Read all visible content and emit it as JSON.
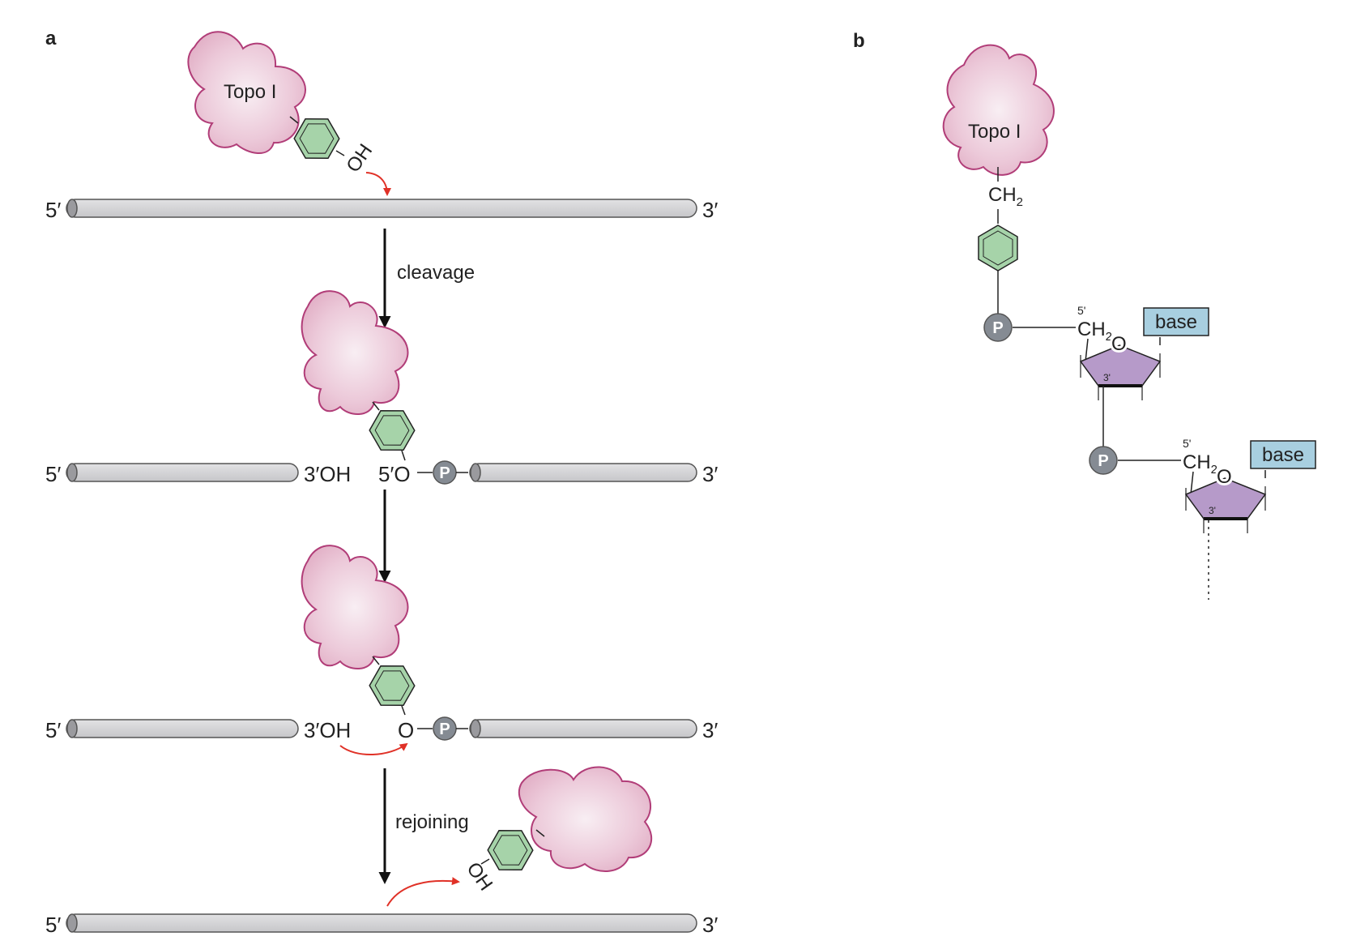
{
  "panels": {
    "a": "a",
    "b": "b"
  },
  "enzyme_label": "Topo I",
  "strand_ends": {
    "five": "5′",
    "three": "3′"
  },
  "steps": {
    "cleavage": "cleavage",
    "rejoining": "rejoining"
  },
  "groups": {
    "OH": "OH",
    "three_OH": "3′OH",
    "five_O": "5′O",
    "O": "O",
    "P": "P"
  },
  "sugar": {
    "ch2_main": "CH",
    "ch2_sub": "2",
    "five_prime": "5'",
    "three_prime": "3'",
    "ring_O": "O",
    "base": "base"
  },
  "colors": {
    "enzyme_fill": "#e8bfd2",
    "enzyme_stroke": "#b13d78",
    "ring_fill": "#a6d3a9",
    "dna_fill": "#d4d4d6",
    "phosphate": "#858b93",
    "sugar_fill": "#b69ac9",
    "base_fill": "#a8cfe0",
    "arrow_red": "#e03127"
  }
}
